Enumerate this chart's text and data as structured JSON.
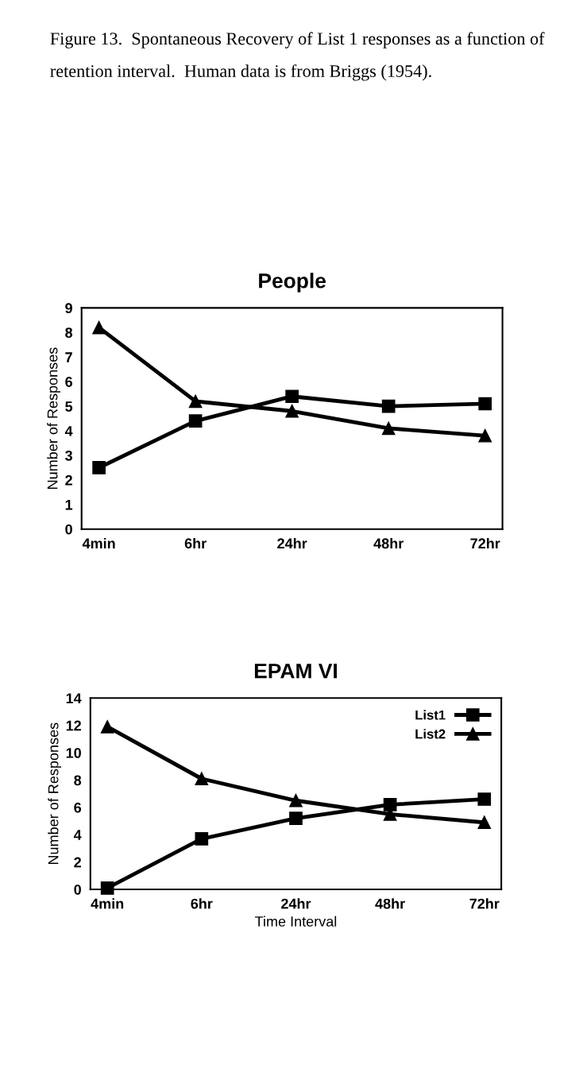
{
  "chart_data": [
    {
      "type": "line",
      "title": "People",
      "ylabel": "Number of Responses",
      "annotations": [
        "Figure 13.  Spontaneous Recovery of List 1 responses as a function of retention interval.  Human data is from Briggs (1954)."
      ],
      "categories": [
        "4min",
        "6hr",
        "24hr",
        "48hr",
        "72hr"
      ],
      "ylim": [
        0,
        9
      ],
      "yticks": [
        0,
        1,
        2,
        3,
        4,
        5,
        6,
        7,
        8,
        9
      ],
      "grid": false,
      "legend": false,
      "series": [
        {
          "color": "#000000",
          "marker": "square",
          "values": [
            2.5,
            4.4,
            5.4,
            5.0,
            5.1
          ]
        },
        {
          "color": "#000000",
          "marker": "triangle",
          "values": [
            8.2,
            5.2,
            4.8,
            4.1,
            3.8
          ]
        }
      ]
    },
    {
      "type": "line",
      "title": "EPAM VI",
      "ylabel": "Number of Responses",
      "xlabel": "Time Interval",
      "categories": [
        "4min",
        "6hr",
        "24hr",
        "48hr",
        "72hr"
      ],
      "ylim": [
        0,
        14
      ],
      "yticks": [
        0,
        2,
        4,
        6,
        8,
        10,
        12,
        14
      ],
      "grid": false,
      "legend": "top right",
      "series": [
        {
          "name": "List1",
          "color": "#000000",
          "marker": "square",
          "values": [
            0.1,
            3.7,
            5.2,
            6.2,
            6.6
          ]
        },
        {
          "name": "List2",
          "color": "#000000",
          "marker": "triangle",
          "values": [
            11.9,
            8.1,
            6.5,
            5.5,
            4.9
          ]
        }
      ]
    }
  ]
}
